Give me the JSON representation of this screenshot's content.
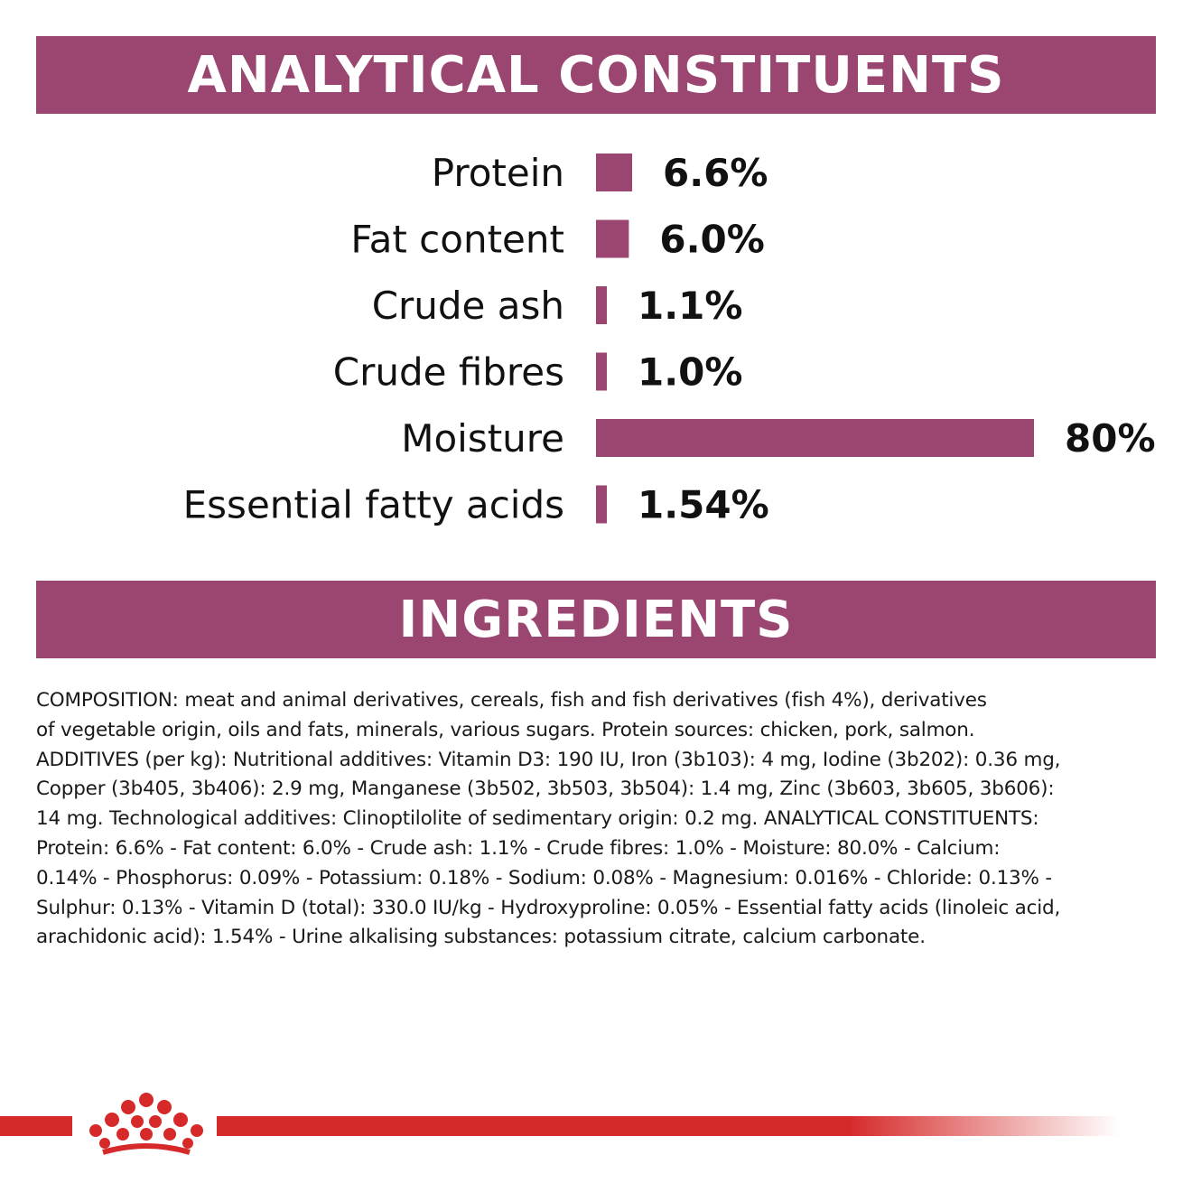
{
  "sections": {
    "analytical_title": "ANALYTICAL CONSTITUENTS",
    "ingredients_title": "INGREDIENTS"
  },
  "colors": {
    "banner": "#9b4670",
    "bar": "#9b4670",
    "brand_red": "#d62a2a"
  },
  "chart_data": {
    "type": "bar",
    "orientation": "horizontal",
    "categories": [
      "Protein",
      "Fat content",
      "Crude ash",
      "Crude fibres",
      "Moisture",
      "Essential fatty acids"
    ],
    "values": [
      6.6,
      6.0,
      1.1,
      1.0,
      80,
      1.54
    ],
    "value_labels": [
      "6.6%",
      "6.0%",
      "1.1%",
      "1.0%",
      "80%",
      "1.54%"
    ],
    "unit": "%",
    "xlim": [
      0,
      80
    ],
    "grid": false,
    "legend": "none"
  },
  "composition_text": "COMPOSITION: meat and animal derivatives, cereals, fish and fish derivatives (fish 4%), derivatives\nof vegetable origin, oils and fats, minerals, various sugars. Protein sources: chicken, pork, salmon.\nADDITIVES (per kg): Nutritional additives: Vitamin D3: 190 IU, Iron (3b103): 4 mg, Iodine (3b202): 0.36 mg,\nCopper (3b405, 3b406): 2.9 mg, Manganese (3b502, 3b503, 3b504): 1.4 mg, Zinc (3b603, 3b605, 3b606):\n14 mg. Technological additives: Clinoptilolite of sedimentary origin: 0.2 mg. ANALYTICAL CONSTITUENTS:\nProtein: 6.6% - Fat content: 6.0% - Crude ash: 1.1% - Crude fibres: 1.0% - Moisture: 80.0% - Calcium:\n0.14% - Phosphorus: 0.09% - Potassium: 0.18% - Sodium: 0.08% - Magnesium: 0.016% - Chloride: 0.13% -\nSulphur: 0.13% - Vitamin D (total): 330.0 IU/kg - Hydroxyproline: 0.05% - Essential fatty acids (linoleic acid,\narachidonic acid): 1.54% - Urine alkalising substances: potassium citrate, calcium carbonate.",
  "logo_icon": "crown-icon"
}
